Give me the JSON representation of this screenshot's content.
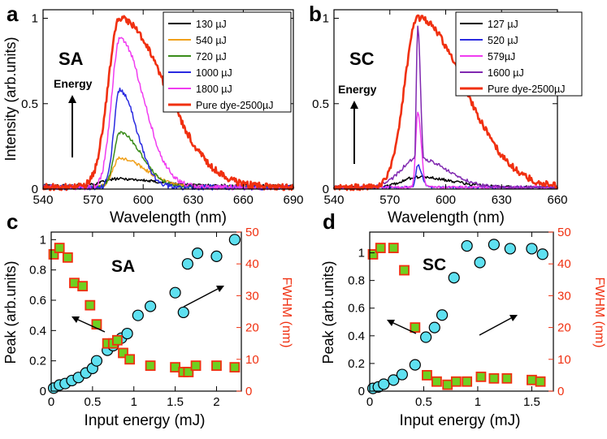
{
  "panels": {
    "a": {
      "letter": "a",
      "tag": "SA",
      "energy_label": "Energy"
    },
    "b": {
      "letter": "b",
      "tag": "SC",
      "energy_label": "Energy"
    },
    "c": {
      "letter": "c",
      "tag": "SA"
    },
    "d": {
      "letter": "d",
      "tag": "SC"
    }
  },
  "colors": {
    "black": "#000000",
    "orange": "#f0a01a",
    "green": "#3a8c1a",
    "blue": "#2a2ae0",
    "magenta": "#f03cf0",
    "red": "#f03010",
    "purple": "#8028b0",
    "cyan": "#5ee0f0",
    "square_fill": "#6ed020",
    "square_edge": "#f03010"
  },
  "chart_data": [
    {
      "panel": "a",
      "type": "line",
      "xlabel": "Wavelength (nm)",
      "ylabel": "Intensity (arb.units)",
      "xlim": [
        540,
        690
      ],
      "ylim": [
        0,
        1.05
      ],
      "xticks": [
        540,
        570,
        600,
        630,
        660,
        690
      ],
      "yticks": [
        0,
        0.5,
        1
      ],
      "ytick_labels": [
        "0",
        "0.5",
        "1"
      ],
      "legend_position": "top-right",
      "series": [
        {
          "name": "130 µJ",
          "color": "black",
          "peak_x": 585,
          "peak": 0.06,
          "w_left": 12,
          "w_right": 30,
          "baseline": 0.02,
          "noise": 0.008
        },
        {
          "name": "540 µJ",
          "color": "orange",
          "peak_x": 586,
          "peak": 0.18,
          "w_left": 6,
          "w_right": 22,
          "baseline": 0.01,
          "noise": 0.01
        },
        {
          "name": "720 µJ",
          "color": "green",
          "peak_x": 586,
          "peak": 0.33,
          "w_left": 5,
          "w_right": 18,
          "baseline": 0.01,
          "noise": 0.01
        },
        {
          "name": "1000 µJ",
          "color": "blue",
          "peak_x": 586,
          "peak": 0.58,
          "w_left": 5,
          "w_right": 14,
          "baseline": 0.01,
          "noise": 0.015
        },
        {
          "name": "1800 µJ",
          "color": "magenta",
          "peak_x": 586,
          "peak": 0.88,
          "w_left": 7,
          "w_right": 20,
          "baseline": 0.01,
          "noise": 0.015
        },
        {
          "name": "Pure dye-2500µJ",
          "color": "red",
          "peak_x": 586,
          "peak": 1.0,
          "w_left": 10,
          "w_right": 38,
          "baseline": 0.01,
          "noise": 0.02
        }
      ]
    },
    {
      "panel": "b",
      "type": "line",
      "xlabel": "Wavelength (nm)",
      "ylabel": "",
      "xlim": [
        540,
        660
      ],
      "ylim": [
        0,
        1.05
      ],
      "xticks": [
        540,
        570,
        600,
        630,
        660
      ],
      "yticks": [
        0,
        0.5,
        1
      ],
      "ytick_labels": [
        "0",
        "0.5",
        "1"
      ],
      "legend_position": "top-right",
      "series": [
        {
          "name": "127 µJ",
          "color": "black",
          "peak_x": 585,
          "peak": 0.07,
          "w_left": 12,
          "w_right": 26,
          "baseline": 0.01,
          "noise": 0.008
        },
        {
          "name": "520 µJ",
          "color": "blue",
          "peak_x": 585,
          "peak": 0.14,
          "w_left": 1.5,
          "w_right": 3,
          "baseline": 0.01,
          "noise": 0.006
        },
        {
          "name": "579µJ",
          "color": "magenta",
          "peak_x": 585,
          "peak": 0.45,
          "w_left": 1.5,
          "w_right": 2.5,
          "baseline": 0.01,
          "noise": 0.008
        },
        {
          "name": "1600 µJ",
          "color": "purple",
          "peak_x": 585,
          "peak": 0.95,
          "w_left": 1.2,
          "w_right": 2.2,
          "baseline": 0.01,
          "noise": 0.01,
          "shoulder": 0.17,
          "shoulder_w": 22
        },
        {
          "name": "Pure dye-2500µJ",
          "color": "red",
          "peak_x": 585,
          "peak": 1.0,
          "w_left": 10,
          "w_right": 35,
          "baseline": 0.01,
          "noise": 0.02
        }
      ]
    },
    {
      "panel": "c",
      "type": "scatter",
      "xlabel": "Input energy (mJ)",
      "ylabel": "Peak (arb.units)",
      "y2label": "FWHM (nm)",
      "xlim": [
        0,
        2.3
      ],
      "ylim": [
        0,
        1.05
      ],
      "y2lim": [
        0,
        50
      ],
      "xticks": [
        0,
        0.5,
        1,
        1.5,
        2
      ],
      "xtick_labels": [
        "0",
        "0.5",
        "1",
        "1.5",
        "2"
      ],
      "yticks": [
        0,
        0.2,
        0.4,
        0.6,
        0.8,
        1
      ],
      "ytick_labels": [
        "0",
        "0.2",
        "0.4",
        "0.6",
        "0.8",
        "1"
      ],
      "y2ticks": [
        0,
        10,
        20,
        30,
        40,
        50
      ],
      "y2tick_labels": [
        "0",
        "10",
        "20",
        "30",
        "40",
        "50"
      ],
      "series": [
        {
          "name": "Peak",
          "axis": "left",
          "marker": "circle",
          "x": [
            0.03,
            0.1,
            0.17,
            0.25,
            0.33,
            0.42,
            0.5,
            0.55,
            0.68,
            0.75,
            0.85,
            0.92,
            1.05,
            1.2,
            1.5,
            1.6,
            1.65,
            1.77,
            2.0,
            2.22
          ],
          "y": [
            0.02,
            0.04,
            0.05,
            0.07,
            0.09,
            0.12,
            0.15,
            0.2,
            0.27,
            0.3,
            0.35,
            0.38,
            0.5,
            0.56,
            0.65,
            0.52,
            0.84,
            0.91,
            0.89,
            1.0
          ]
        },
        {
          "name": "FWHM",
          "axis": "right",
          "marker": "square",
          "x": [
            0.03,
            0.1,
            0.2,
            0.28,
            0.38,
            0.47,
            0.55,
            0.68,
            0.75,
            0.8,
            0.87,
            0.95,
            1.2,
            1.5,
            1.6,
            1.66,
            1.75,
            2.0,
            2.22
          ],
          "y": [
            43,
            45,
            42,
            34,
            33,
            27,
            21,
            15,
            15,
            16,
            12,
            10,
            8,
            7.5,
            6,
            6,
            8,
            8,
            7.5
          ]
        }
      ]
    },
    {
      "panel": "d",
      "type": "scatter",
      "xlabel": "Input energy (mJ)",
      "ylabel": "Peak (arb.units)",
      "y2label": "FWHM (nm)",
      "xlim": [
        0,
        1.7
      ],
      "ylim": [
        0,
        1.15
      ],
      "y2lim": [
        0,
        50
      ],
      "xticks": [
        0,
        0.5,
        1,
        1.5
      ],
      "xtick_labels": [
        "0",
        "0.5",
        "1",
        "1.5"
      ],
      "yticks": [
        0,
        0.2,
        0.4,
        0.6,
        0.8,
        1
      ],
      "ytick_labels": [
        "0",
        "0.2",
        "0.4",
        "0.6",
        "0.8",
        "1"
      ],
      "y2ticks": [
        0,
        10,
        20,
        30,
        40,
        50
      ],
      "y2tick_labels": [
        "0",
        "10",
        "20",
        "30",
        "40",
        "50"
      ],
      "series": [
        {
          "name": "Peak",
          "axis": "left",
          "marker": "circle",
          "x": [
            0.03,
            0.08,
            0.13,
            0.22,
            0.3,
            0.42,
            0.52,
            0.6,
            0.67,
            0.78,
            0.9,
            1.02,
            1.15,
            1.3,
            1.5,
            1.6
          ],
          "y": [
            0.02,
            0.03,
            0.05,
            0.08,
            0.12,
            0.19,
            0.39,
            0.46,
            0.55,
            0.82,
            1.05,
            0.93,
            1.06,
            1.03,
            1.03,
            0.99
          ]
        },
        {
          "name": "FWHM",
          "axis": "right",
          "marker": "square",
          "x": [
            0.03,
            0.1,
            0.22,
            0.32,
            0.42,
            0.53,
            0.62,
            0.72,
            0.8,
            0.9,
            1.03,
            1.15,
            1.27,
            1.5,
            1.58
          ],
          "y": [
            43,
            45,
            45,
            38,
            20,
            5,
            3,
            2,
            3,
            3,
            4.5,
            4,
            4,
            3.5,
            3
          ]
        }
      ]
    }
  ]
}
